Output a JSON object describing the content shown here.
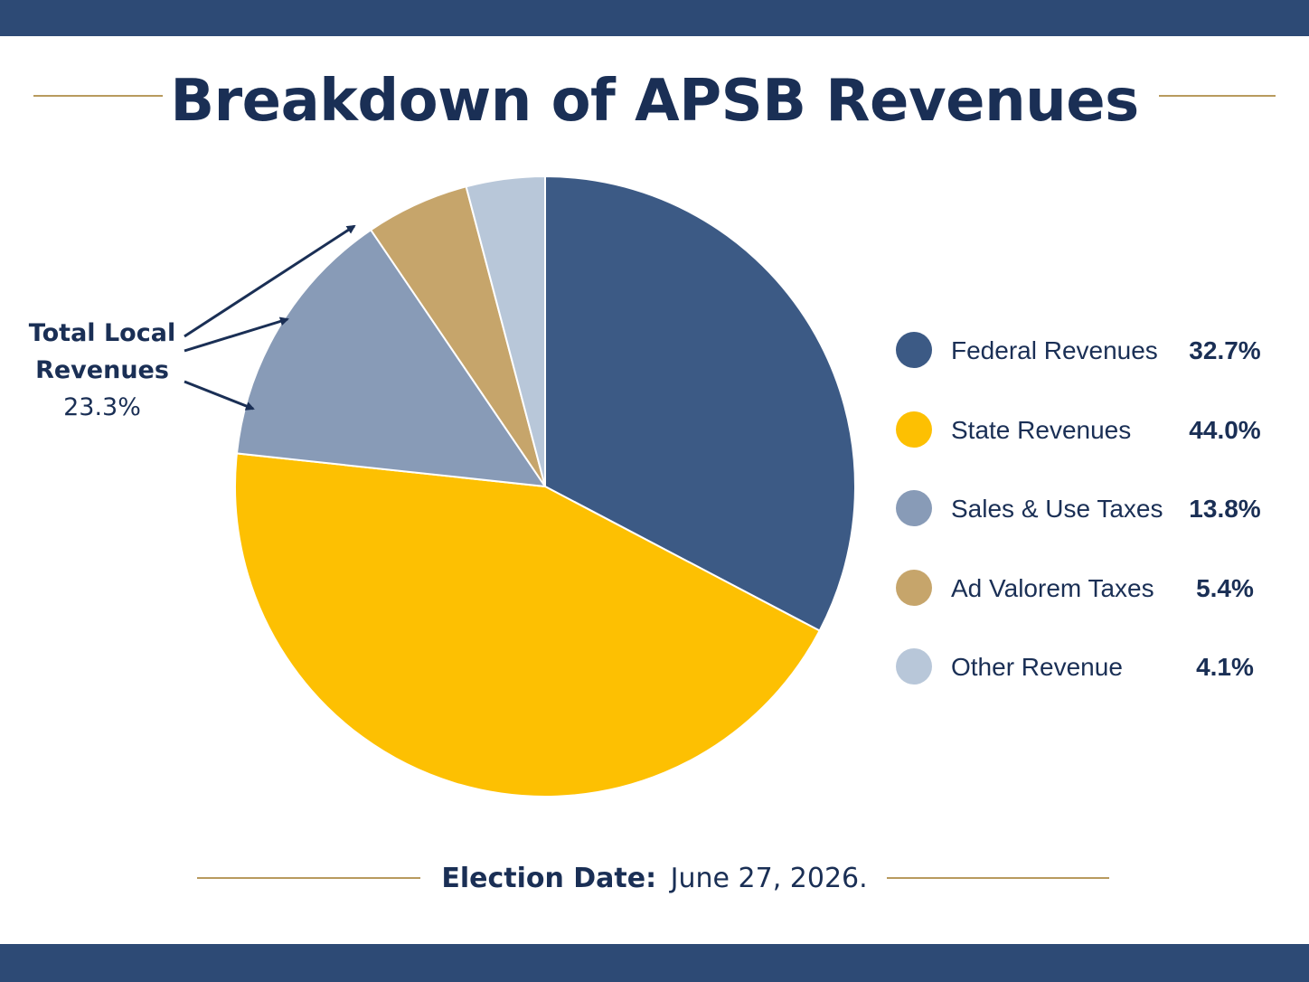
{
  "colors": {
    "navy": "#2d4a75",
    "text": "#1a2f55",
    "gold_rule": "#b89a5e",
    "arrow": "#1a2f55"
  },
  "title": "Breakdown of APSB Revenues",
  "callout": {
    "line1": "Total Local",
    "line2": "Revenues",
    "value": "23.3%"
  },
  "chart_data": {
    "type": "pie",
    "title": "Breakdown of APSB Revenues",
    "start_angle_deg": 0,
    "direction": "clockwise",
    "slices": [
      {
        "label": "Federal Revenues",
        "value": 32.7,
        "display": "32.7%",
        "color": "#3c5a85"
      },
      {
        "label": "State Revenues",
        "value": 44.0,
        "display": "44.0%",
        "color": "#fdc002"
      },
      {
        "label": "Sales & Use Taxes",
        "value": 13.8,
        "display": "13.8%",
        "color": "#889bb7"
      },
      {
        "label": "Ad Valorem Taxes",
        "value": 5.4,
        "display": "5.4%",
        "color": "#c6a56b"
      },
      {
        "label": "Other Revenue",
        "value": 4.1,
        "display": "4.1%",
        "color": "#b8c7d9"
      }
    ],
    "legend_position": "right",
    "annotations": [
      {
        "text": "Total Local Revenues 23.3%",
        "points_to": [
          "Sales & Use Taxes",
          "Ad Valorem Taxes",
          "Other Revenue"
        ]
      }
    ]
  },
  "footer": {
    "label": "Election Date:",
    "value": "June 27, 2026."
  }
}
